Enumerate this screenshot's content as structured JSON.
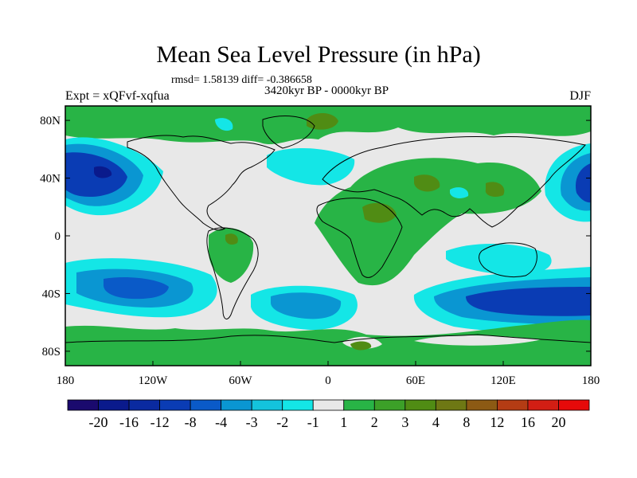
{
  "title": "Mean Sea Level Pressure (in hPa)",
  "stats": "rmsd= 1.58139 diff= -0.386658",
  "subtitle": "3420kyr BP - 0000kyr BP",
  "experiment": "Expt = xQFvf-xqfua",
  "season": "DJF",
  "colors": {
    "land_line": "#000000",
    "neutral": "#e8e8e8"
  },
  "chart_data": {
    "type": "heatmap",
    "title": "Mean Sea Level Pressure (in hPa)",
    "x_ticks": [
      {
        "value": -180,
        "label": "180"
      },
      {
        "value": -120,
        "label": "120W"
      },
      {
        "value": -60,
        "label": "60W"
      },
      {
        "value": 0,
        "label": "0"
      },
      {
        "value": 60,
        "label": "60E"
      },
      {
        "value": 120,
        "label": "120E"
      },
      {
        "value": 180,
        "label": "180"
      }
    ],
    "y_ticks": [
      {
        "value": 80,
        "label": "80N"
      },
      {
        "value": 40,
        "label": "40N"
      },
      {
        "value": 0,
        "label": "0"
      },
      {
        "value": -40,
        "label": "40S"
      },
      {
        "value": -80,
        "label": "80S"
      }
    ],
    "colorbar": {
      "labels": [
        "-20",
        "-16",
        "-12",
        "-8",
        "-4",
        "-3",
        "-2",
        "-1",
        "1",
        "2",
        "3",
        "4",
        "8",
        "12",
        "16",
        "20"
      ],
      "colors": [
        "#1a0a6e",
        "#0a1a8c",
        "#0a2aa0",
        "#0a3cb4",
        "#0a5ac8",
        "#0a96d2",
        "#14c3dc",
        "#14e6e6",
        "#e8e8e8",
        "#28b446",
        "#3ca028",
        "#508c14",
        "#6e7814",
        "#8c5a14",
        "#b43c14",
        "#d21e14",
        "#e60a0a"
      ]
    },
    "fields": [
      {
        "name": "north-pacific-low",
        "value": -8,
        "lon": -160,
        "lat": 40
      },
      {
        "name": "south-pacific-low",
        "value": -4,
        "lon": -140,
        "lat": -35
      },
      {
        "name": "south-atlantic-low",
        "value": -3,
        "lon": -15,
        "lat": -45
      },
      {
        "name": "southern-indian-low",
        "value": -8,
        "lon": 130,
        "lat": -45
      },
      {
        "name": "west-pacific-low",
        "value": -4,
        "lon": 170,
        "lat": 38
      },
      {
        "name": "north-atlantic-low",
        "value": -1,
        "lon": -20,
        "lat": 45
      },
      {
        "name": "africa-high",
        "value": 2,
        "lon": 20,
        "lat": 0
      },
      {
        "name": "asia-high",
        "value": 2,
        "lon": 70,
        "lat": 35
      },
      {
        "name": "south-america-high",
        "value": 2,
        "lon": -60,
        "lat": -15
      }
    ]
  }
}
